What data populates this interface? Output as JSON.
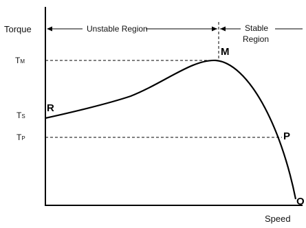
{
  "axes": {
    "x_label": "Speed",
    "y_label": "Torque"
  },
  "regions": {
    "unstable": "Unstable Region",
    "stable_line1": "Stable",
    "stable_line2": "Region"
  },
  "levels": {
    "tm_main": "T",
    "tm_sub": "M",
    "ts_main": "T",
    "ts_sub": "S",
    "tp_main": "T",
    "tp_sub": "P"
  },
  "points": {
    "r": "R",
    "m": "M",
    "p": "P",
    "o": "O"
  },
  "colors": {
    "line": "#000000",
    "text": "#111111"
  }
}
